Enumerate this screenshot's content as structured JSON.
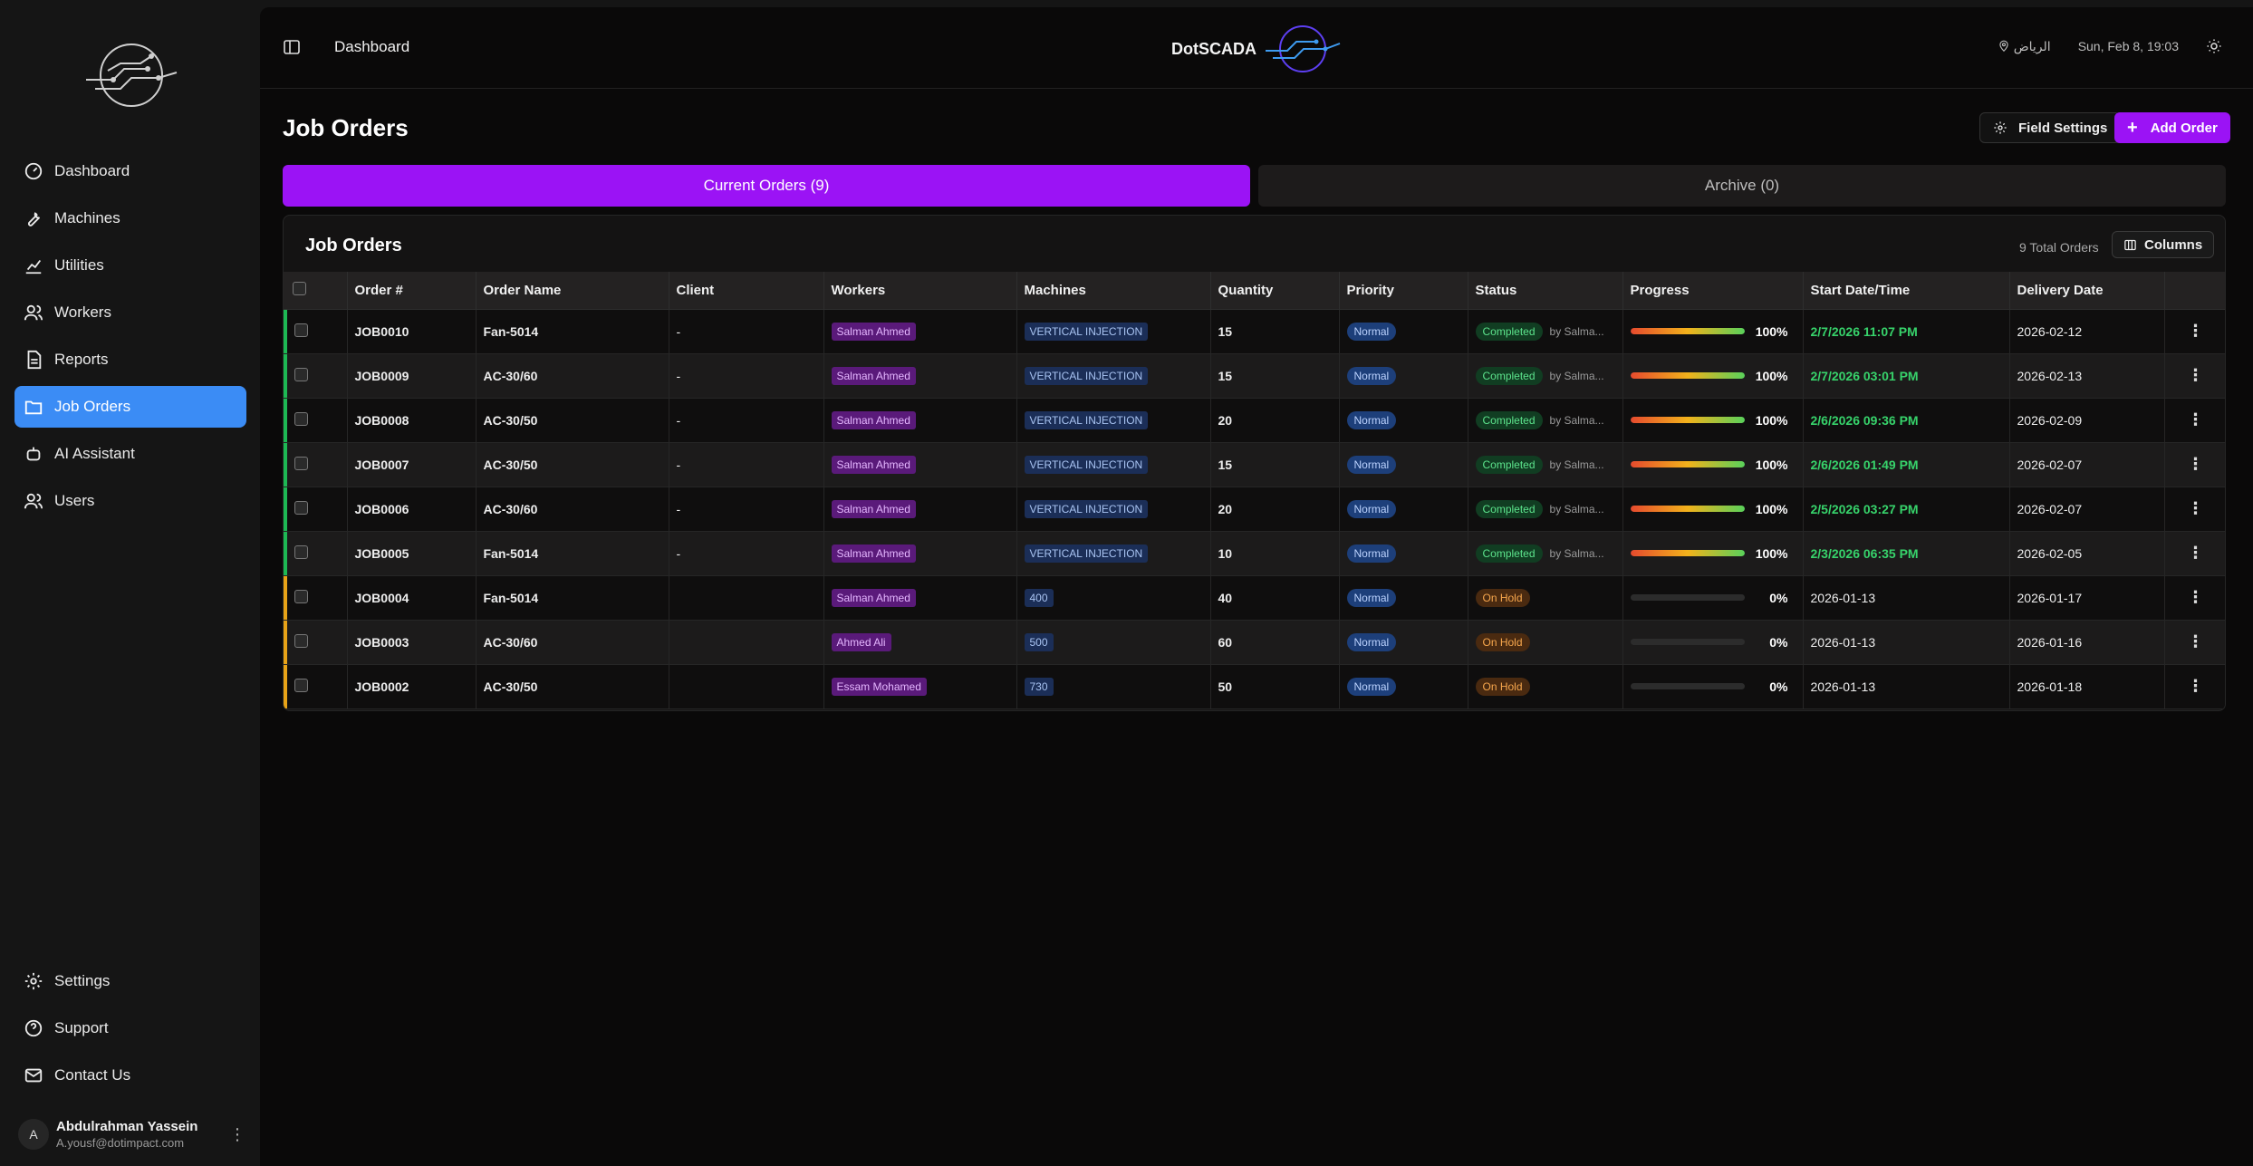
{
  "sidebar": {
    "items": [
      {
        "label": "Dashboard",
        "icon": "gauge-icon",
        "active": false
      },
      {
        "label": "Machines",
        "icon": "wrench-icon",
        "active": false
      },
      {
        "label": "Utilities",
        "icon": "chart-icon",
        "active": false
      },
      {
        "label": "Workers",
        "icon": "users-icon",
        "active": false
      },
      {
        "label": "Reports",
        "icon": "file-icon",
        "active": false
      },
      {
        "label": "Job Orders",
        "icon": "folder-icon",
        "active": true
      },
      {
        "label": "AI Assistant",
        "icon": "robot-icon",
        "active": false
      },
      {
        "label": "Users",
        "icon": "users-icon",
        "active": false
      }
    ],
    "bottom_items": [
      {
        "label": "Settings",
        "icon": "gear-icon"
      },
      {
        "label": "Support",
        "icon": "help-icon"
      },
      {
        "label": "Contact Us",
        "icon": "mail-icon"
      }
    ],
    "user": {
      "initial": "A",
      "name": "Abdulrahman Yassein",
      "email": "A.yousf@dotimpact.com"
    }
  },
  "header": {
    "breadcrumb": "Dashboard",
    "brand": "DotSCADA",
    "location": "الرياض",
    "datetime": "Sun, Feb 8, 19:03"
  },
  "page": {
    "title": "Job Orders",
    "field_settings_label": "Field Settings",
    "add_order_label": "Add Order",
    "tab_current": "Current Orders (9)",
    "tab_archive": "Archive (0)"
  },
  "table_card": {
    "title": "Job Orders",
    "total": "9 Total Orders",
    "columns_label": "Columns"
  },
  "columns": [
    "Order #",
    "Order Name",
    "Client",
    "Workers",
    "Machines",
    "Quantity",
    "Priority",
    "Status",
    "Progress",
    "Start Date/Time",
    "Delivery Date"
  ],
  "rows": [
    {
      "order": "JOB0010",
      "name": "Fan-5014",
      "client": "-",
      "worker": "Salman Ahmed",
      "machine": "VERTICAL INJECTION",
      "qty": "15",
      "priority": "Normal",
      "status": "Completed",
      "by": "by Salma...",
      "progress": 100,
      "progress_label": "100%",
      "start": "2/7/2026 11:07 PM",
      "delivery": "2026-02-12"
    },
    {
      "order": "JOB0009",
      "name": "AC-30/60",
      "client": "-",
      "worker": "Salman Ahmed",
      "machine": "VERTICAL INJECTION",
      "qty": "15",
      "priority": "Normal",
      "status": "Completed",
      "by": "by Salma...",
      "progress": 100,
      "progress_label": "100%",
      "start": "2/7/2026 03:01 PM",
      "delivery": "2026-02-13"
    },
    {
      "order": "JOB0008",
      "name": "AC-30/50",
      "client": "-",
      "worker": "Salman Ahmed",
      "machine": "VERTICAL INJECTION",
      "qty": "20",
      "priority": "Normal",
      "status": "Completed",
      "by": "by Salma...",
      "progress": 100,
      "progress_label": "100%",
      "start": "2/6/2026 09:36 PM",
      "delivery": "2026-02-09"
    },
    {
      "order": "JOB0007",
      "name": "AC-30/50",
      "client": "-",
      "worker": "Salman Ahmed",
      "machine": "VERTICAL INJECTION",
      "qty": "15",
      "priority": "Normal",
      "status": "Completed",
      "by": "by Salma...",
      "progress": 100,
      "progress_label": "100%",
      "start": "2/6/2026 01:49 PM",
      "delivery": "2026-02-07"
    },
    {
      "order": "JOB0006",
      "name": "AC-30/60",
      "client": "-",
      "worker": "Salman Ahmed",
      "machine": "VERTICAL INJECTION",
      "qty": "20",
      "priority": "Normal",
      "status": "Completed",
      "by": "by Salma...",
      "progress": 100,
      "progress_label": "100%",
      "start": "2/5/2026 03:27 PM",
      "delivery": "2026-02-07"
    },
    {
      "order": "JOB0005",
      "name": "Fan-5014",
      "client": "-",
      "worker": "Salman Ahmed",
      "machine": "VERTICAL INJECTION",
      "qty": "10",
      "priority": "Normal",
      "status": "Completed",
      "by": "by Salma...",
      "progress": 100,
      "progress_label": "100%",
      "start": "2/3/2026 06:35 PM",
      "delivery": "2026-02-05"
    },
    {
      "order": "JOB0004",
      "name": "Fan-5014",
      "client": "",
      "worker": "Salman Ahmed",
      "machine": "400",
      "qty": "40",
      "priority": "Normal",
      "status": "On Hold",
      "by": "",
      "progress": 0,
      "progress_label": "0%",
      "start": "2026-01-13",
      "delivery": "2026-01-17"
    },
    {
      "order": "JOB0003",
      "name": "AC-30/60",
      "client": "",
      "worker": "Ahmed Ali",
      "machine": "500",
      "qty": "60",
      "priority": "Normal",
      "status": "On Hold",
      "by": "",
      "progress": 0,
      "progress_label": "0%",
      "start": "2026-01-13",
      "delivery": "2026-01-16"
    },
    {
      "order": "JOB0002",
      "name": "AC-30/50",
      "client": "",
      "worker": "Essam Mohamed",
      "machine": "730",
      "qty": "50",
      "priority": "Normal",
      "status": "On Hold",
      "by": "",
      "progress": 0,
      "progress_label": "0%",
      "start": "2026-01-13",
      "delivery": "2026-01-18"
    }
  ],
  "colors": {
    "accent": "#9b13f5",
    "active_nav": "#3b8cf5",
    "completed": "#1db954",
    "on_hold": "#e8a317"
  }
}
